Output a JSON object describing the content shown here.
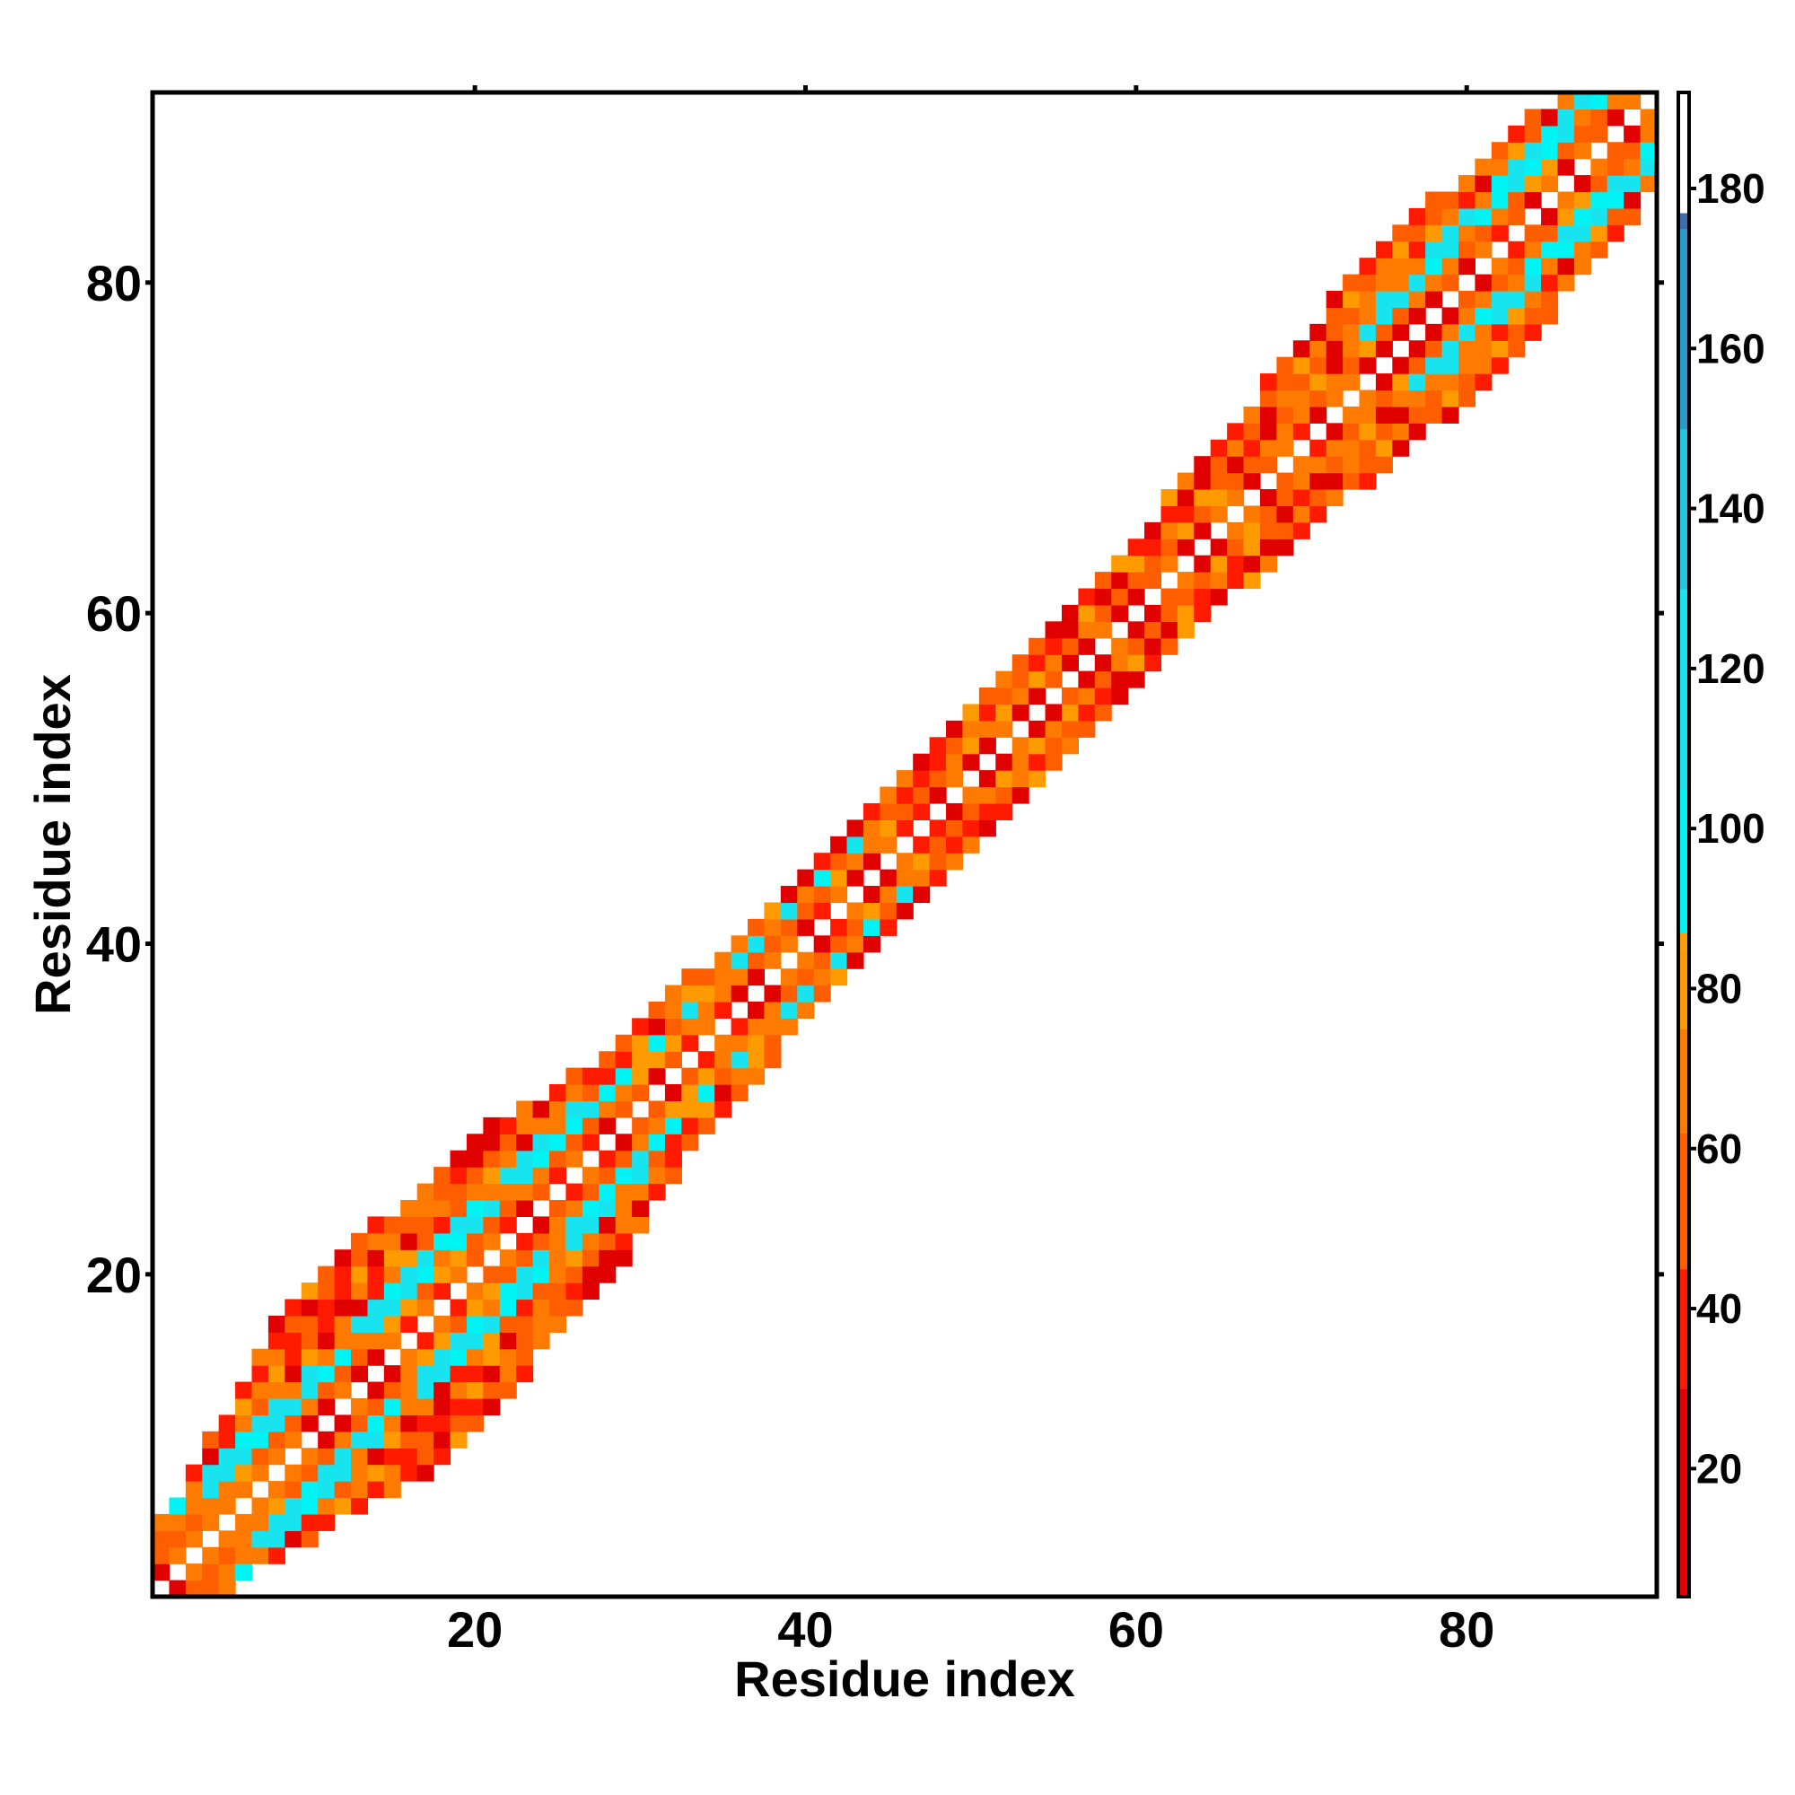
{
  "chart_data": {
    "type": "heatmap",
    "title": "",
    "xlabel": "Residue index",
    "ylabel": "Residue index",
    "xlim": [
      0.5,
      91.5
    ],
    "ylim": [
      0.5,
      91.5
    ],
    "x_ticks": [
      20,
      40,
      60,
      80
    ],
    "y_ticks": [
      20,
      40,
      60,
      80
    ],
    "colorbar": {
      "ticks": [
        20,
        40,
        60,
        80,
        100,
        120,
        140,
        160,
        180
      ],
      "range": [
        4,
        192
      ],
      "stops": [
        {
          "value": 4,
          "color": "#e00000"
        },
        {
          "value": 30,
          "color": "#ff1a00"
        },
        {
          "value": 45,
          "color": "#ff5e00"
        },
        {
          "value": 62,
          "color": "#ff7a00"
        },
        {
          "value": 75,
          "color": "#ff9a00"
        },
        {
          "value": 85,
          "color": "#ffa000"
        },
        {
          "value": 87,
          "color": "#00f4f4"
        },
        {
          "value": 105,
          "color": "#18e4f0"
        },
        {
          "value": 130,
          "color": "#22c6e2"
        },
        {
          "value": 150,
          "color": "#2a9ccc"
        },
        {
          "value": 175,
          "color": "#3f6cb0"
        },
        {
          "value": 177,
          "color": "#ffffff"
        },
        {
          "value": 192,
          "color": "#ffffff"
        }
      ]
    },
    "diagonal_band_width": [
      {
        "residue": 1,
        "width": 3
      },
      {
        "residue": 6,
        "width": 5
      },
      {
        "residue": 13,
        "width": 9
      },
      {
        "residue": 24,
        "width": 8
      },
      {
        "residue": 30,
        "width": 5
      },
      {
        "residue": 42,
        "width": 4
      },
      {
        "residue": 50,
        "width": 4
      },
      {
        "residue": 60,
        "width": 4
      },
      {
        "residue": 68,
        "width": 5
      },
      {
        "residue": 78,
        "width": 7
      },
      {
        "residue": 86,
        "width": 6
      },
      {
        "residue": 91,
        "width": 4
      }
    ],
    "helix_regions": [
      [
        3,
        28
      ],
      [
        74,
        91
      ]
    ],
    "cyan_regions": [
      [
        4,
        47
      ],
      [
        75,
        91
      ]
    ],
    "pattern": "values at |i-j|=1 near 20-50 (red/orange), |i-j|=2 near 40-80 (orange), |i-j|=3-4 near 120 (cyan) in helical regions; white on diagonal",
    "grid": false,
    "legend": "colorbar-right"
  }
}
